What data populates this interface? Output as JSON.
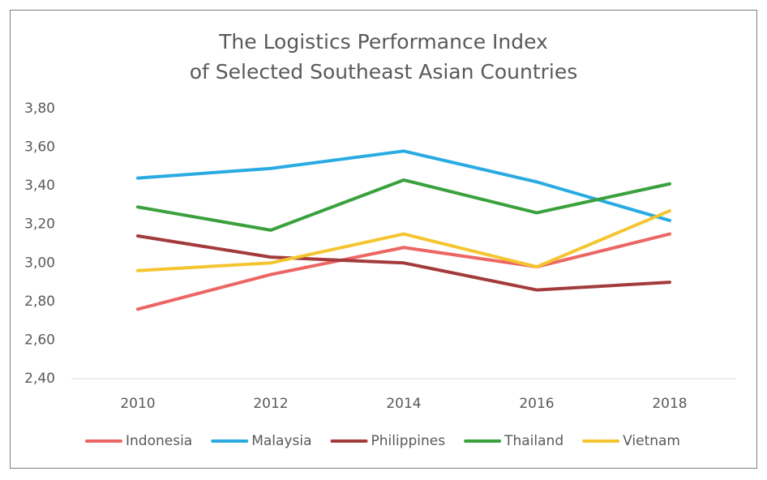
{
  "chart_data": {
    "type": "line",
    "title": "The Logistics Performance Index",
    "subtitle": "of Selected Southeast Asian Countries",
    "categories": [
      "2010",
      "2012",
      "2014",
      "2016",
      "2018"
    ],
    "series": [
      {
        "name": "Indonesia",
        "color": "#ec6664",
        "values": [
          2.76,
          2.94,
          3.08,
          2.98,
          3.15
        ]
      },
      {
        "name": "Malaysia",
        "color": "#29abe2",
        "values": [
          3.44,
          3.49,
          3.58,
          3.42,
          3.22
        ]
      },
      {
        "name": "Philippines",
        "color": "#a33b3b",
        "values": [
          3.14,
          3.03,
          3.0,
          2.86,
          2.9
        ]
      },
      {
        "name": "Thailand",
        "color": "#3aa13d",
        "values": [
          3.29,
          3.17,
          3.43,
          3.26,
          3.41
        ]
      },
      {
        "name": "Vietnam",
        "color": "#f5c531",
        "values": [
          2.96,
          3.0,
          3.15,
          2.98,
          3.27
        ]
      }
    ],
    "ylim": [
      2.4,
      3.8
    ],
    "yticks": [
      {
        "value": 2.4,
        "label": "2,40"
      },
      {
        "value": 2.6,
        "label": "2,60"
      },
      {
        "value": 2.8,
        "label": "2,80"
      },
      {
        "value": 3.0,
        "label": "3,00"
      },
      {
        "value": 3.2,
        "label": "3,20"
      },
      {
        "value": 3.4,
        "label": "3,40"
      },
      {
        "value": 3.6,
        "label": "3,60"
      },
      {
        "value": 3.8,
        "label": "3,80"
      }
    ],
    "grid": false,
    "legend": "bottom"
  }
}
